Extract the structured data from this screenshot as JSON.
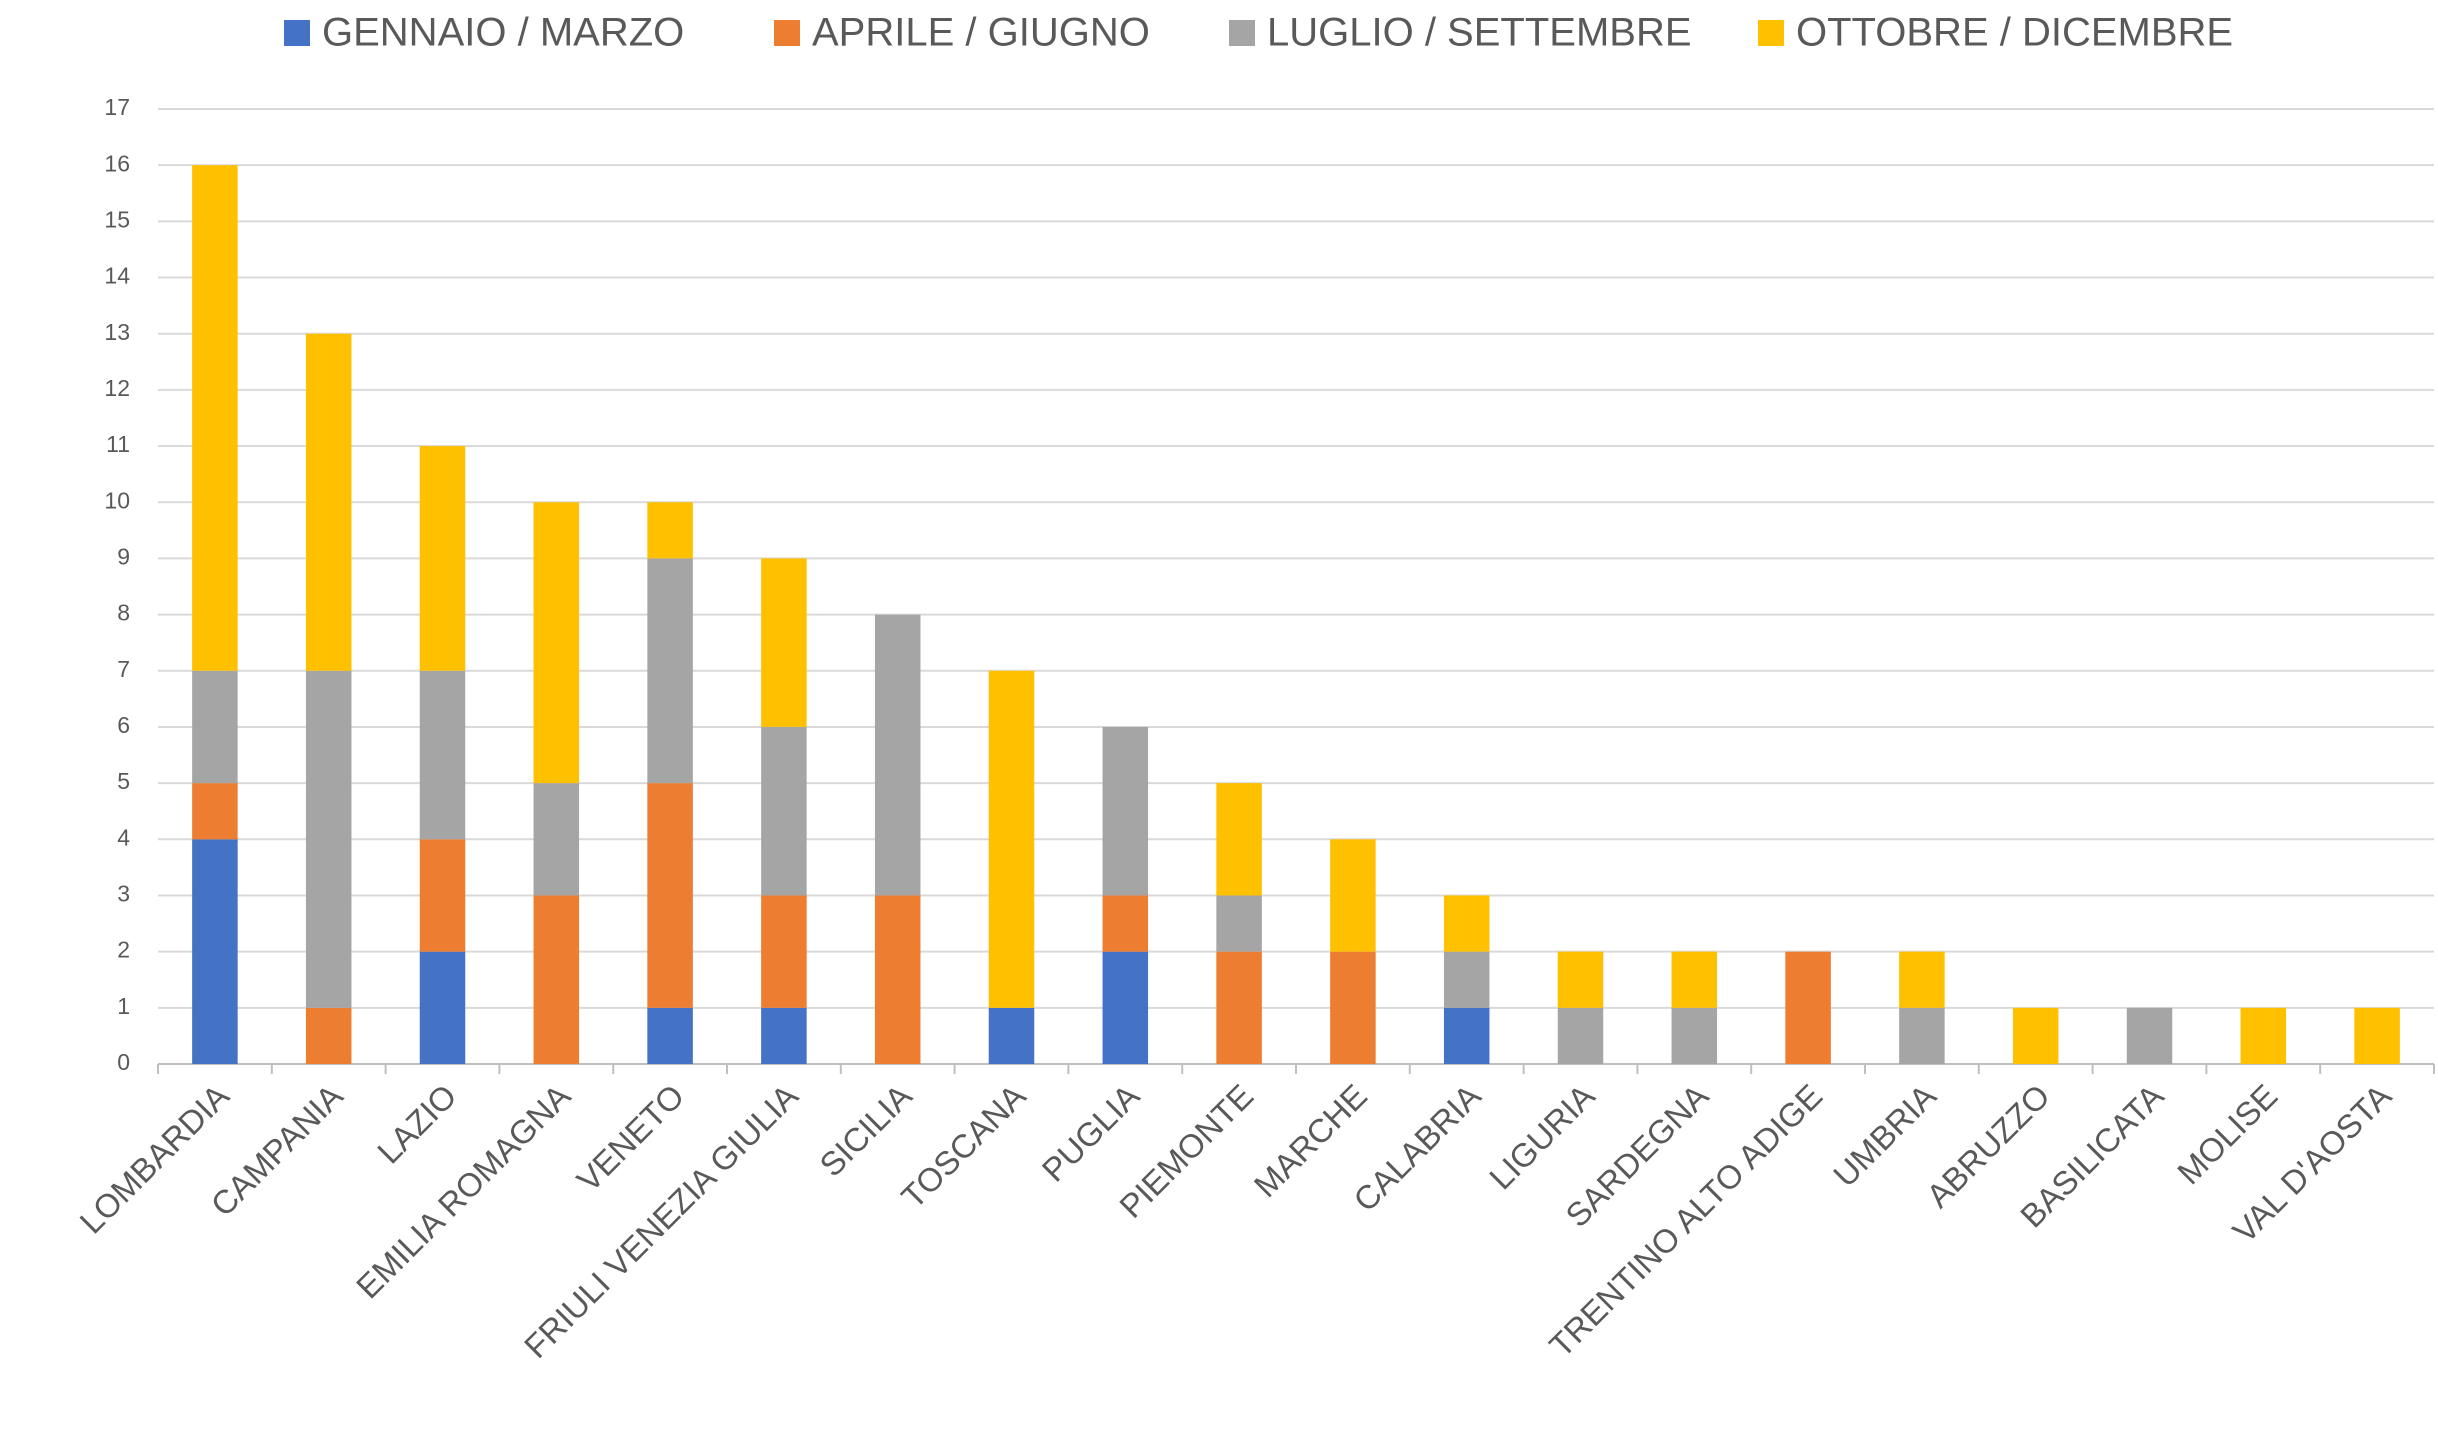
{
  "chart_data": {
    "type": "stacked_bar",
    "categories": [
      "LOMBARDIA",
      "CAMPANIA",
      "LAZIO",
      "EMILIA ROMAGNA",
      "VENETO",
      "FRIULI VENEZIA GIULIA",
      "SICILIA",
      "TOSCANA",
      "PUGLIA",
      "PIEMONTE",
      "MARCHE",
      "CALABRIA",
      "LIGURIA",
      "SARDEGNA",
      "TRENTINO ALTO ADIGE",
      "UMBRIA",
      "ABRUZZO",
      "BASILICATA",
      "MOLISE",
      "VAL D'AOSTA"
    ],
    "series": [
      {
        "name": "GENNAIO / MARZO",
        "color": "#4472c4",
        "values": [
          4,
          0,
          2,
          0,
          1,
          1,
          0,
          1,
          2,
          0,
          0,
          1,
          0,
          0,
          0,
          0,
          0,
          0,
          0,
          0
        ]
      },
      {
        "name": "APRILE / GIUGNO",
        "color": "#ed7d31",
        "values": [
          1,
          1,
          2,
          3,
          4,
          2,
          3,
          0,
          1,
          2,
          2,
          0,
          0,
          0,
          2,
          0,
          0,
          0,
          0,
          0
        ]
      },
      {
        "name": "LUGLIO / SETTEMBRE",
        "color": "#a5a5a5",
        "values": [
          2,
          6,
          3,
          2,
          4,
          3,
          5,
          0,
          3,
          1,
          0,
          1,
          1,
          1,
          0,
          1,
          0,
          1,
          0,
          0
        ]
      },
      {
        "name": "OTTOBRE / DICEMBRE",
        "color": "#ffc000",
        "values": [
          9,
          6,
          4,
          5,
          1,
          3,
          0,
          6,
          0,
          2,
          2,
          1,
          1,
          1,
          0,
          1,
          1,
          0,
          1,
          1
        ]
      }
    ],
    "ylim": [
      0,
      17
    ],
    "yticks": [
      0,
      1,
      2,
      3,
      4,
      5,
      6,
      7,
      8,
      9,
      10,
      11,
      12,
      13,
      14,
      15,
      16,
      17
    ],
    "grid": true,
    "legend": "top"
  }
}
